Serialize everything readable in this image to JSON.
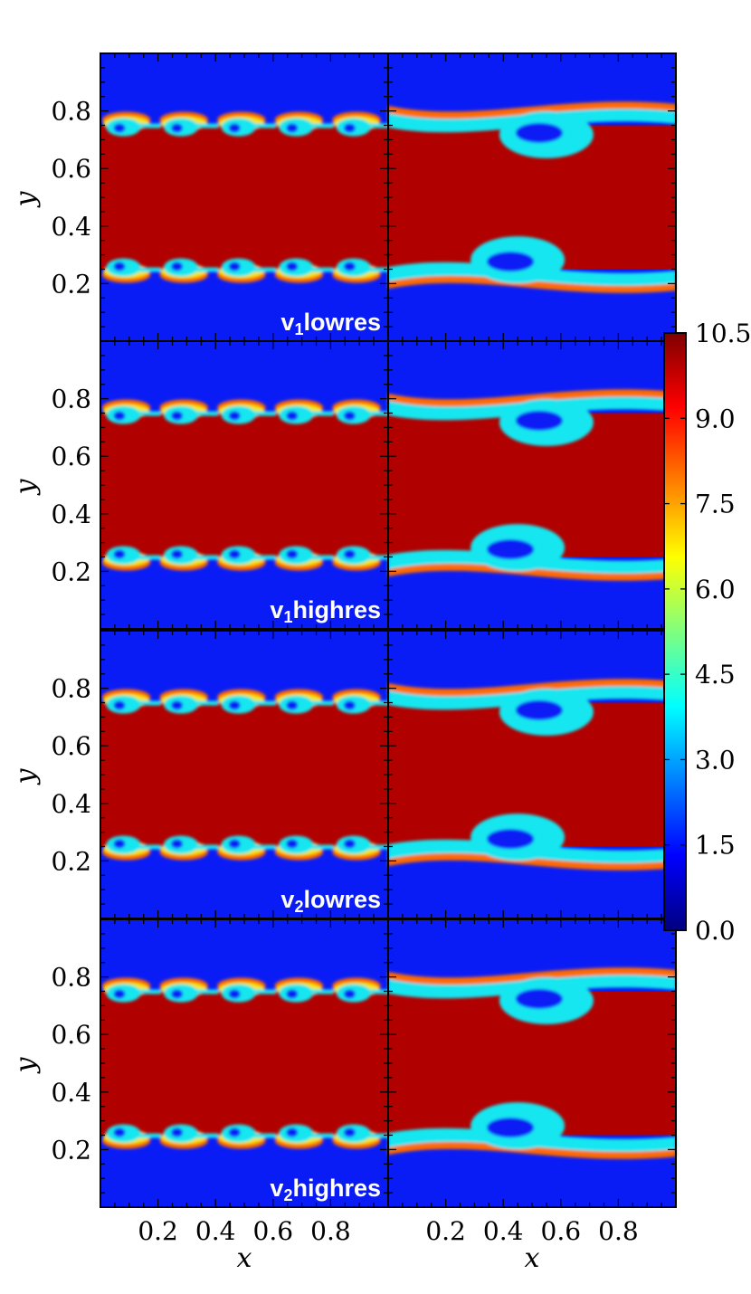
{
  "chart_data": {
    "type": "heatmap",
    "title": "",
    "xlabel": "x",
    "ylabel": "y",
    "xlim": [
      0,
      1
    ],
    "ylim": [
      0,
      1
    ],
    "x_ticks": [
      "0.2",
      "0.4",
      "0.6",
      "0.8"
    ],
    "y_ticks": [
      "0.2",
      "0.4",
      "0.6",
      "0.8"
    ],
    "grid": false,
    "layout": "4 rows x 2 columns, shared axes",
    "colorbar": {
      "min": 0.0,
      "max": 10.5,
      "ticks": [
        "0.0",
        "1.5",
        "3.0",
        "4.5",
        "6.0",
        "7.5",
        "9.0",
        "10.5"
      ],
      "colormap": "jet"
    },
    "field": {
      "background_value": 1.0,
      "band_value": 10.0,
      "band_y_range": [
        0.25,
        0.75
      ]
    },
    "rows": [
      {
        "label_main": "v",
        "label_sub": "1",
        "label_rest": "lowres",
        "left_vortices": 5,
        "right_vortices": 1
      },
      {
        "label_main": "v",
        "label_sub": "1",
        "label_rest": "highres",
        "left_vortices": 5,
        "right_vortices": 1
      },
      {
        "label_main": "v",
        "label_sub": "2",
        "label_rest": "lowres",
        "left_vortices": 5,
        "right_vortices": 1
      },
      {
        "label_main": "v",
        "label_sub": "2",
        "label_rest": "highres",
        "left_vortices": 5,
        "right_vortices": 1
      }
    ],
    "colors": {
      "background": "#0a1cf5",
      "band": "#b00000",
      "mix_cyan": "#18e6f0",
      "mix_yellow": "#f5e414",
      "mix_orange": "#ff6a00",
      "jet_stops": [
        "#00007f",
        "#0000ff",
        "#007fff",
        "#00ffff",
        "#7fff7f",
        "#ffff00",
        "#ff7f00",
        "#ff0000",
        "#7f0000"
      ]
    }
  }
}
